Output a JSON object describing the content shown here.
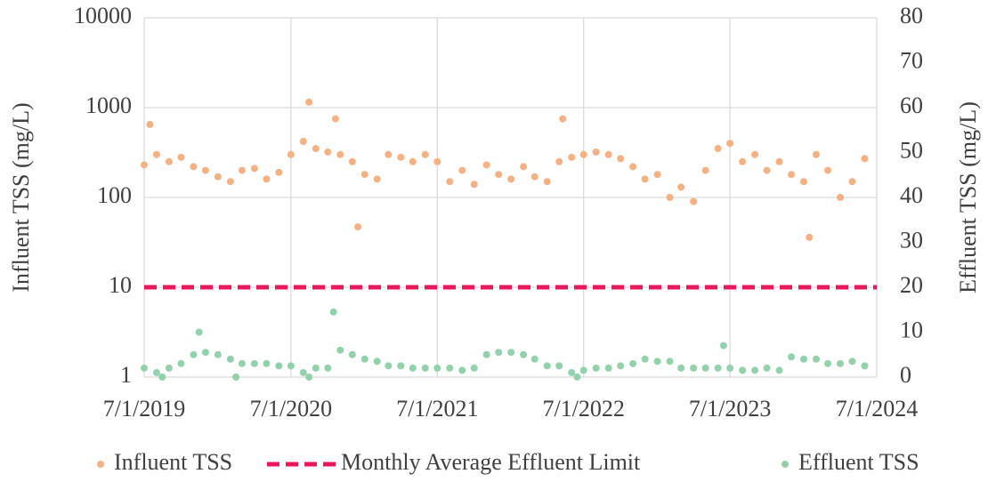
{
  "chart_data": {
    "type": "scatter",
    "ylabel": "Influent TSS (mg/L)",
    "y2label": "Effluent TSS (mg/L)",
    "xlim": [
      "7/1/2019",
      "7/1/2024"
    ],
    "xticks": [
      "7/1/2019",
      "7/1/2020",
      "7/1/2021",
      "7/1/2022",
      "7/1/2023",
      "7/1/2024"
    ],
    "ylim": [
      1,
      10000
    ],
    "yticks": [
      1,
      10,
      100,
      1000,
      10000
    ],
    "ylog": true,
    "y2lim": [
      0,
      80
    ],
    "y2ticks": [
      0,
      10,
      20,
      30,
      40,
      50,
      60,
      70,
      80
    ],
    "grid": true,
    "legend": "bottom",
    "series": [
      {
        "name": "Influent TSS",
        "type": "scatter",
        "color": "#f4b183",
        "axis": "y",
        "x": [
          "7/1/2019",
          "8/1/2019",
          "9/1/2019",
          "10/1/2019",
          "11/1/2019",
          "12/1/2019",
          "1/1/2020",
          "2/1/2020",
          "3/1/2020",
          "4/1/2020",
          "5/1/2020",
          "6/1/2020",
          "7/1/2020",
          "8/1/2020",
          "9/1/2020",
          "10/1/2020",
          "11/1/2020",
          "12/1/2020",
          "1/1/2021",
          "2/1/2021",
          "3/1/2021",
          "4/1/2021",
          "5/1/2021",
          "6/1/2021",
          "7/1/2021",
          "8/1/2021",
          "9/1/2021",
          "10/1/2021",
          "11/1/2021",
          "12/1/2021",
          "1/1/2022",
          "2/1/2022",
          "3/1/2022",
          "4/1/2022",
          "5/1/2022",
          "6/1/2022",
          "7/1/2022",
          "8/1/2022",
          "9/1/2022",
          "10/1/2022",
          "11/1/2022",
          "12/1/2022",
          "1/1/2023",
          "2/1/2023",
          "3/1/2023",
          "4/1/2023",
          "5/1/2023",
          "6/1/2023",
          "7/1/2023",
          "8/1/2023",
          "9/1/2023",
          "10/1/2023",
          "11/1/2023",
          "12/1/2023",
          "1/1/2024",
          "2/1/2024",
          "3/1/2024",
          "4/1/2024",
          "5/1/2024",
          "6/1/2024",
          "7/15/2019",
          "8/15/2020",
          "10/20/2020",
          "12/15/2020",
          "5/10/2022",
          "1/15/2024"
        ],
        "values": [
          230,
          300,
          250,
          280,
          220,
          200,
          170,
          150,
          200,
          210,
          160,
          190,
          300,
          420,
          350,
          320,
          300,
          250,
          180,
          160,
          300,
          280,
          250,
          300,
          250,
          150,
          200,
          140,
          230,
          180,
          160,
          220,
          170,
          150,
          250,
          280,
          300,
          320,
          300,
          270,
          220,
          160,
          180,
          100,
          130,
          90,
          200,
          350,
          400,
          250,
          300,
          200,
          250,
          180,
          150,
          300,
          200,
          100,
          150,
          270,
          650,
          1150,
          750,
          47,
          750,
          36
        ]
      },
      {
        "name": "Monthly Average Effluent Limit",
        "type": "line",
        "color": "#e8185a",
        "axis": "y",
        "x": [
          "7/1/2019",
          "7/1/2024"
        ],
        "values": [
          10,
          10
        ]
      },
      {
        "name": "Effluent TSS",
        "type": "scatter",
        "color": "#93d1ad",
        "axis": "y2",
        "x": [
          "7/1/2019",
          "8/1/2019",
          "9/1/2019",
          "10/1/2019",
          "11/1/2019",
          "12/1/2019",
          "1/1/2020",
          "2/1/2020",
          "3/1/2020",
          "4/1/2020",
          "5/1/2020",
          "6/1/2020",
          "7/1/2020",
          "8/1/2020",
          "9/1/2020",
          "10/1/2020",
          "11/1/2020",
          "12/1/2020",
          "1/1/2021",
          "2/1/2021",
          "3/1/2021",
          "4/1/2021",
          "5/1/2021",
          "6/1/2021",
          "7/1/2021",
          "8/1/2021",
          "9/1/2021",
          "10/1/2021",
          "11/1/2021",
          "12/1/2021",
          "1/1/2022",
          "2/1/2022",
          "3/1/2022",
          "4/1/2022",
          "5/1/2022",
          "6/1/2022",
          "7/1/2022",
          "8/1/2022",
          "9/1/2022",
          "10/1/2022",
          "11/1/2022",
          "12/1/2022",
          "1/1/2023",
          "2/1/2023",
          "3/1/2023",
          "4/1/2023",
          "5/1/2023",
          "6/1/2023",
          "7/1/2023",
          "8/1/2023",
          "9/1/2023",
          "10/1/2023",
          "11/1/2023",
          "12/1/2023",
          "1/1/2024",
          "2/1/2024",
          "3/1/2024",
          "4/1/2024",
          "5/1/2024",
          "6/1/2024",
          "11/15/2019",
          "10/15/2020",
          "6/15/2023",
          "8/15/2019",
          "2/15/2020",
          "8/15/2020",
          "6/15/2022"
        ],
        "values": [
          2,
          1,
          2,
          3,
          5,
          5.5,
          5,
          4,
          3,
          3,
          3,
          2.5,
          2.5,
          1,
          2,
          2,
          6,
          5,
          4,
          3.5,
          2.5,
          2.5,
          2,
          2,
          2,
          2,
          1.5,
          2,
          5,
          5.5,
          5.5,
          5,
          4,
          2.5,
          2.5,
          1,
          1.5,
          2,
          2,
          2.5,
          3,
          4,
          3.5,
          3.5,
          2,
          2,
          2,
          2,
          2,
          1.5,
          1.5,
          2,
          1.5,
          4.5,
          4,
          4,
          3,
          3,
          3.5,
          2.5,
          10,
          14.5,
          7,
          0,
          0,
          0,
          0
        ]
      }
    ]
  }
}
